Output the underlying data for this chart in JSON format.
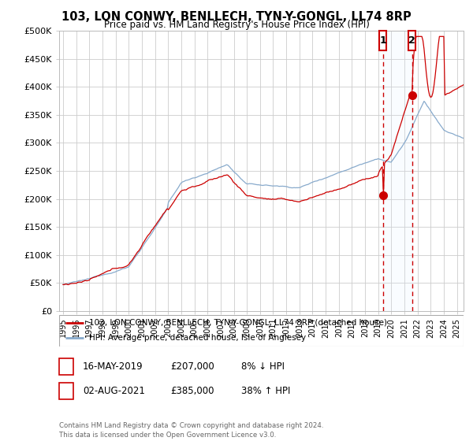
{
  "title": "103, LON CONWY, BENLLECH, TYN-Y-GONGL, LL74 8RP",
  "subtitle": "Price paid vs. HM Land Registry's House Price Index (HPI)",
  "ylim": [
    0,
    500000
  ],
  "yticks": [
    0,
    50000,
    100000,
    150000,
    200000,
    250000,
    300000,
    350000,
    400000,
    450000,
    500000
  ],
  "ytick_labels": [
    "£0",
    "£50K",
    "£100K",
    "£150K",
    "£200K",
    "£250K",
    "£300K",
    "£350K",
    "£400K",
    "£450K",
    "£500K"
  ],
  "xlim_start": 1994.7,
  "xlim_end": 2025.5,
  "sale1_x": 2019.37,
  "sale1_y": 207000,
  "sale1_label": "1",
  "sale1_date": "16-MAY-2019",
  "sale1_price": "£207,000",
  "sale1_hpi": "8% ↓ HPI",
  "sale2_x": 2021.58,
  "sale2_y": 385000,
  "sale2_label": "2",
  "sale2_date": "02-AUG-2021",
  "sale2_price": "£385,000",
  "sale2_hpi": "38% ↑ HPI",
  "legend_line1": "103, LON CONWY, BENLLECH, TYN-Y-GONGL, LL74 8RP (detached house)",
  "legend_line2": "HPI: Average price, detached house, Isle of Anglesey",
  "footer": "Contains HM Land Registry data © Crown copyright and database right 2024.\nThis data is licensed under the Open Government Licence v3.0.",
  "line_color_red": "#cc0000",
  "line_color_blue": "#88aacc",
  "shade_color": "#ddeeff",
  "background_color": "#ffffff",
  "grid_color": "#cccccc"
}
